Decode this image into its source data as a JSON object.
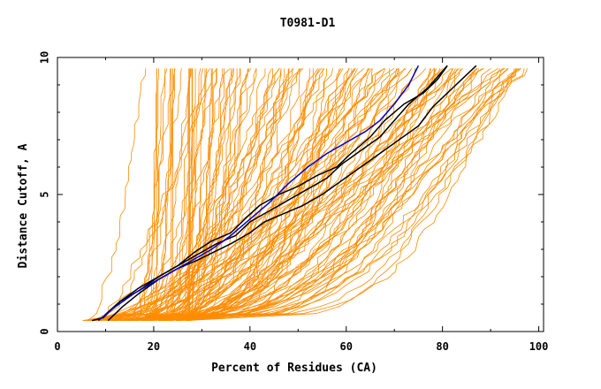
{
  "chart_data": {
    "type": "line",
    "title": "T0981-D1",
    "xlabel": "Percent of Residues (CA)",
    "ylabel": "Distance Cutoff, A",
    "xlim": [
      0,
      101
    ],
    "ylim": [
      0,
      10
    ],
    "xticks": [
      0,
      20,
      40,
      60,
      80,
      100
    ],
    "yticks": [
      0,
      5,
      10
    ],
    "grid": false,
    "colors": {
      "orange": "#ff8c00",
      "blue": "#0000cc",
      "black": "#000000"
    },
    "series": [
      {
        "name": "black-1",
        "color": "#000000",
        "points": [
          [
            7.2,
            0.4
          ],
          [
            9.5,
            0.5
          ],
          [
            13,
            1.1
          ],
          [
            17,
            1.6
          ],
          [
            21,
            2.0
          ],
          [
            25,
            2.4
          ],
          [
            29,
            2.8
          ],
          [
            33,
            3.2
          ],
          [
            37,
            3.5
          ],
          [
            40,
            4.0
          ],
          [
            44,
            4.4
          ],
          [
            48,
            4.8
          ],
          [
            52,
            5.2
          ],
          [
            56,
            5.6
          ],
          [
            59,
            6.1
          ],
          [
            63,
            6.6
          ],
          [
            67,
            7.1
          ],
          [
            70,
            7.7
          ],
          [
            73,
            8.3
          ],
          [
            77,
            8.9
          ],
          [
            81,
            9.7
          ]
        ]
      },
      {
        "name": "black-2",
        "color": "#000000",
        "points": [
          [
            10.5,
            0.4
          ],
          [
            13.5,
            0.9
          ],
          [
            17,
            1.4
          ],
          [
            21,
            1.9
          ],
          [
            25,
            2.3
          ],
          [
            29,
            2.6
          ],
          [
            32.5,
            2.9
          ],
          [
            36,
            3.2
          ],
          [
            40,
            3.6
          ],
          [
            43,
            4.0
          ],
          [
            47,
            4.3
          ],
          [
            51,
            4.6
          ],
          [
            55,
            5.0
          ],
          [
            59,
            5.5
          ],
          [
            63,
            6.0
          ],
          [
            67,
            6.5
          ],
          [
            71,
            7.0
          ],
          [
            75,
            7.5
          ],
          [
            78,
            8.2
          ],
          [
            81,
            8.7
          ],
          [
            84,
            9.2
          ],
          [
            87,
            9.7
          ]
        ]
      },
      {
        "name": "black-3",
        "color": "#000000",
        "points": [
          [
            9.8,
            0.6
          ],
          [
            13,
            1.1
          ],
          [
            17,
            1.5
          ],
          [
            21,
            2.0
          ],
          [
            25,
            2.4
          ],
          [
            28.5,
            2.9
          ],
          [
            32,
            3.3
          ],
          [
            36,
            3.6
          ],
          [
            39.5,
            4.2
          ],
          [
            42,
            4.6
          ],
          [
            46,
            5.0
          ],
          [
            50,
            5.3
          ],
          [
            54,
            5.7
          ],
          [
            58,
            6.0
          ],
          [
            61,
            6.5
          ],
          [
            65,
            7.1
          ],
          [
            68,
            7.7
          ],
          [
            72,
            8.3
          ],
          [
            76,
            8.7
          ],
          [
            79,
            9.2
          ],
          [
            81,
            9.7
          ]
        ]
      },
      {
        "name": "blue",
        "color": "#0000cc",
        "points": [
          [
            8.5,
            0.4
          ],
          [
            12,
            0.9
          ],
          [
            16,
            1.4
          ],
          [
            20,
            1.8
          ],
          [
            24,
            2.2
          ],
          [
            28,
            2.6
          ],
          [
            32,
            3.0
          ],
          [
            36,
            3.5
          ],
          [
            40,
            4.1
          ],
          [
            44,
            4.7
          ],
          [
            48,
            5.4
          ],
          [
            52,
            6.0
          ],
          [
            56,
            6.5
          ],
          [
            60,
            6.9
          ],
          [
            64,
            7.3
          ],
          [
            67,
            7.7
          ],
          [
            70,
            8.3
          ],
          [
            73,
            9.0
          ],
          [
            75,
            9.7
          ]
        ]
      }
    ]
  }
}
